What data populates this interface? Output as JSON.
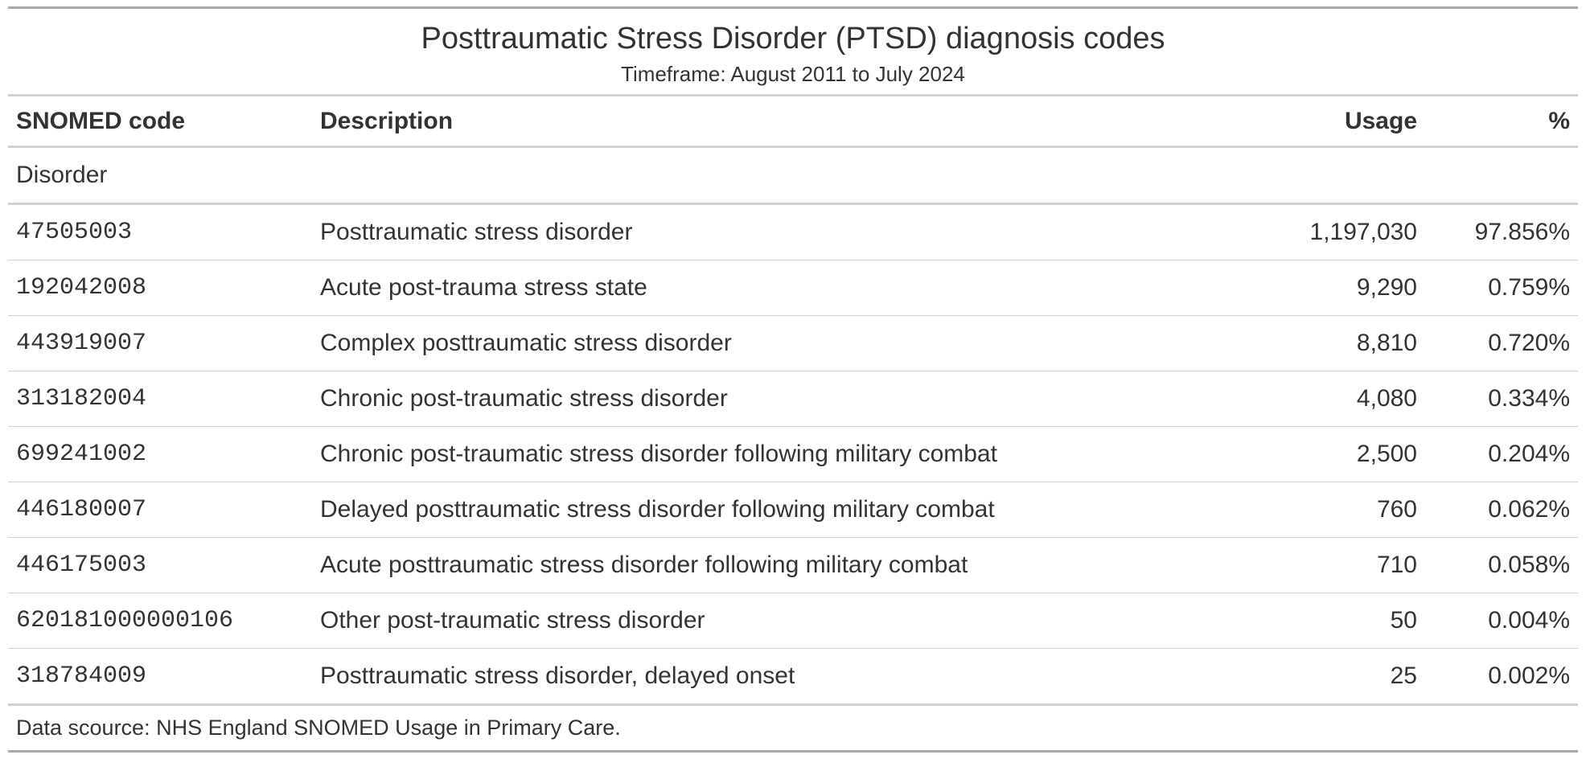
{
  "title": "Posttraumatic Stress Disorder (PTSD) diagnosis codes",
  "subtitle": "Timeframe: August 2011 to July 2024",
  "columns": {
    "code": "SNOMED code",
    "description": "Description",
    "usage": "Usage",
    "pct": "%"
  },
  "group_label": "Disorder",
  "rows": [
    {
      "code": "47505003",
      "description": "Posttraumatic stress disorder",
      "usage": "1,197,030",
      "pct": "97.856%"
    },
    {
      "code": "192042008",
      "description": "Acute post-trauma stress state",
      "usage": "9,290",
      "pct": "0.759%"
    },
    {
      "code": "443919007",
      "description": "Complex posttraumatic stress disorder",
      "usage": "8,810",
      "pct": "0.720%"
    },
    {
      "code": "313182004",
      "description": "Chronic post-traumatic stress disorder",
      "usage": "4,080",
      "pct": "0.334%"
    },
    {
      "code": "699241002",
      "description": "Chronic post-traumatic stress disorder following military combat",
      "usage": "2,500",
      "pct": "0.204%"
    },
    {
      "code": "446180007",
      "description": "Delayed posttraumatic stress disorder following military combat",
      "usage": "760",
      "pct": "0.062%"
    },
    {
      "code": "446175003",
      "description": "Acute posttraumatic stress disorder following military combat",
      "usage": "710",
      "pct": "0.058%"
    },
    {
      "code": "620181000000106",
      "description": "Other post-traumatic stress disorder",
      "usage": "50",
      "pct": "0.004%"
    },
    {
      "code": "318784009",
      "description": "Posttraumatic stress disorder, delayed onset",
      "usage": "25",
      "pct": "0.002%"
    }
  ],
  "footnote": "Data scource: NHS England SNOMED Usage in Primary Care."
}
